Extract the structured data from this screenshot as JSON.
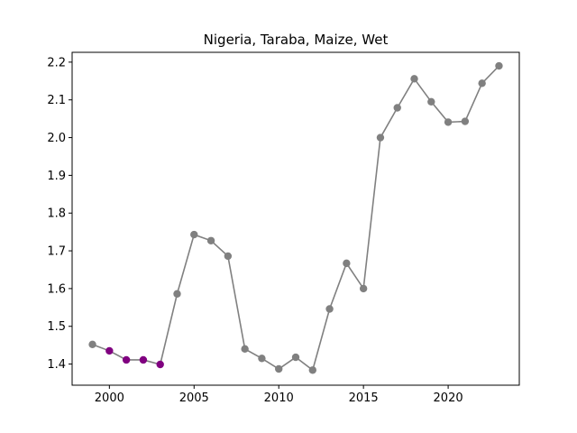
{
  "chart_data": {
    "type": "line",
    "title": "Nigeria, Taraba, Maize, Wet",
    "xlabel": "",
    "ylabel": "",
    "xlim": [
      1997.8,
      2024.2
    ],
    "ylim": [
      1.344,
      2.226
    ],
    "x_ticks": [
      2000,
      2005,
      2010,
      2015,
      2020
    ],
    "y_ticks": [
      1.4,
      1.5,
      1.6,
      1.7,
      1.8,
      1.9,
      2.0,
      2.1,
      2.2
    ],
    "grid": false,
    "line_color": "#808080",
    "marker_color": "#808080",
    "highlight_color": "#800080",
    "series": [
      {
        "x": [
          1999,
          2000,
          2001,
          2002,
          2003,
          2004,
          2005,
          2006,
          2007,
          2008,
          2009,
          2010,
          2011,
          2012,
          2013,
          2014,
          2015,
          2016,
          2017,
          2018,
          2019,
          2020,
          2021,
          2022,
          2023
        ],
        "y": [
          1.452,
          1.435,
          1.411,
          1.411,
          1.399,
          1.586,
          1.743,
          1.727,
          1.686,
          1.44,
          1.415,
          1.387,
          1.418,
          1.384,
          1.546,
          1.667,
          1.6,
          2.0,
          2.079,
          2.156,
          2.095,
          2.041,
          2.043,
          2.144,
          2.19
        ],
        "highlighted_x": [
          2000,
          2001,
          2002,
          2003
        ]
      }
    ]
  }
}
